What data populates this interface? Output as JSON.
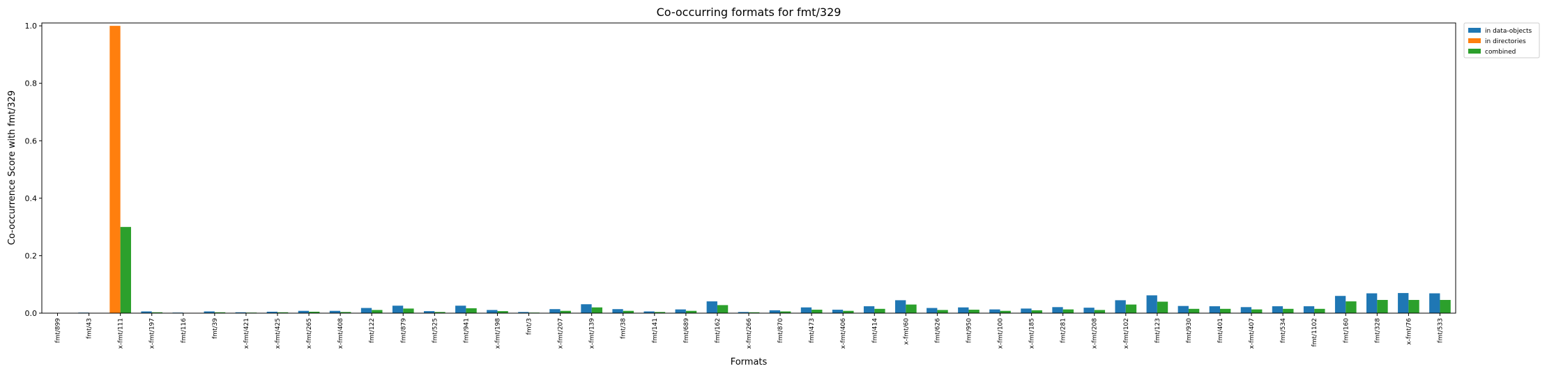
{
  "chart_data": {
    "type": "bar",
    "title": "Co-occurring formats for fmt/329",
    "xlabel": "Formats",
    "ylabel": "Co-occurrence Score with fmt/329",
    "ylim": [
      0,
      1.01
    ],
    "yticks": [
      "0.0",
      "0.2",
      "0.4",
      "0.6",
      "0.8",
      "1.0"
    ],
    "grid": false,
    "legend_position": "outside-top-right",
    "categories": [
      "fmt/899",
      "fmt/43",
      "x-fmt/111",
      "x-fmt/197",
      "fmt/116",
      "fmt/39",
      "x-fmt/421",
      "x-fmt/425",
      "x-fmt/265",
      "x-fmt/408",
      "fmt/122",
      "fmt/879",
      "fmt/525",
      "fmt/941",
      "x-fmt/198",
      "fmt/3",
      "x-fmt/207",
      "x-fmt/139",
      "fmt/38",
      "fmt/141",
      "fmt/689",
      "fmt/162",
      "x-fmt/266",
      "fmt/870",
      "fmt/473",
      "x-fmt/406",
      "fmt/414",
      "x-fmt/60",
      "fmt/626",
      "fmt/950",
      "x-fmt/100",
      "x-fmt/185",
      "fmt/281",
      "x-fmt/208",
      "x-fmt/102",
      "fmt/123",
      "fmt/930",
      "fmt/401",
      "x-fmt/407",
      "fmt/534",
      "fmt/1102",
      "fmt/160",
      "fmt/328",
      "x-fmt/76",
      "fmt/533"
    ],
    "series": [
      {
        "name": "in data-objects",
        "color": "#1f77b4",
        "values": [
          0.001,
          0.002,
          0,
          0.006,
          0.002,
          0.006,
          0.003,
          0.005,
          0.008,
          0.008,
          0.018,
          0.026,
          0.007,
          0.026,
          0.011,
          0.004,
          0.014,
          0.031,
          0.014,
          0.006,
          0.013,
          0.041,
          0.004,
          0.01,
          0.02,
          0.012,
          0.024,
          0.045,
          0.018,
          0.02,
          0.013,
          0.016,
          0.021,
          0.019,
          0.045,
          0.062,
          0.025,
          0.024,
          0.021,
          0.024,
          0.024,
          0.06,
          0.069,
          0.07,
          0.069
        ]
      },
      {
        "name": "in directories",
        "color": "#ff7f0e",
        "values": [
          0,
          0,
          1.0,
          0,
          0,
          0,
          0,
          0,
          0,
          0,
          0,
          0,
          0,
          0,
          0,
          0,
          0,
          0,
          0,
          0,
          0,
          0,
          0,
          0,
          0,
          0,
          0,
          0,
          0,
          0,
          0,
          0,
          0,
          0,
          0,
          0,
          0,
          0,
          0,
          0,
          0,
          0,
          0,
          0,
          0
        ]
      },
      {
        "name": "combined",
        "color": "#2ca02c",
        "values": [
          0.0003,
          0.0006,
          0.3,
          0.003,
          0.001,
          0.003,
          0.002,
          0.003,
          0.005,
          0.004,
          0.011,
          0.016,
          0.004,
          0.017,
          0.007,
          0.002,
          0.008,
          0.02,
          0.008,
          0.004,
          0.008,
          0.028,
          0.003,
          0.006,
          0.012,
          0.008,
          0.015,
          0.03,
          0.011,
          0.012,
          0.008,
          0.01,
          0.013,
          0.011,
          0.03,
          0.04,
          0.015,
          0.015,
          0.013,
          0.015,
          0.015,
          0.041,
          0.046,
          0.046,
          0.046
        ]
      }
    ]
  }
}
